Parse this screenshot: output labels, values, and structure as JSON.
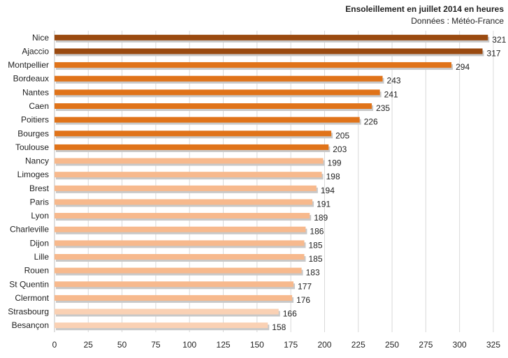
{
  "chart_data": {
    "type": "bar",
    "orientation": "horizontal",
    "title": "Ensoleillement  en juillet 2014 en heures",
    "subtitle": "Données : Météo-France",
    "categories": [
      "Nice",
      "Ajaccio",
      "Montpellier",
      "Bordeaux",
      "Nantes",
      "Caen",
      "Poitiers",
      "Bourges",
      "Toulouse",
      "Nancy",
      "Limoges",
      "Brest",
      "Paris",
      "Lyon",
      "Charleville",
      "Dijon",
      "Lille",
      "Rouen",
      "St Quentin",
      "Clermont",
      "Strasbourg",
      "Besançon"
    ],
    "values": [
      321,
      317,
      294,
      243,
      241,
      235,
      226,
      205,
      203,
      199,
      198,
      194,
      191,
      189,
      186,
      185,
      185,
      183,
      177,
      176,
      166,
      158
    ],
    "xlim": [
      0,
      325
    ],
    "xticks": [
      0,
      25,
      50,
      75,
      100,
      125,
      150,
      175,
      200,
      225,
      250,
      275,
      300,
      325
    ],
    "grid": true,
    "colors": {
      "top": "#9a4a10",
      "high": "#e07319",
      "mid": "#f7b98d",
      "low": "#fad1b4"
    },
    "color_groups": [
      "top",
      "top",
      "high",
      "high",
      "high",
      "high",
      "high",
      "high",
      "high",
      "mid",
      "mid",
      "mid",
      "mid",
      "mid",
      "mid",
      "mid",
      "mid",
      "mid",
      "mid",
      "mid",
      "low",
      "low"
    ]
  }
}
